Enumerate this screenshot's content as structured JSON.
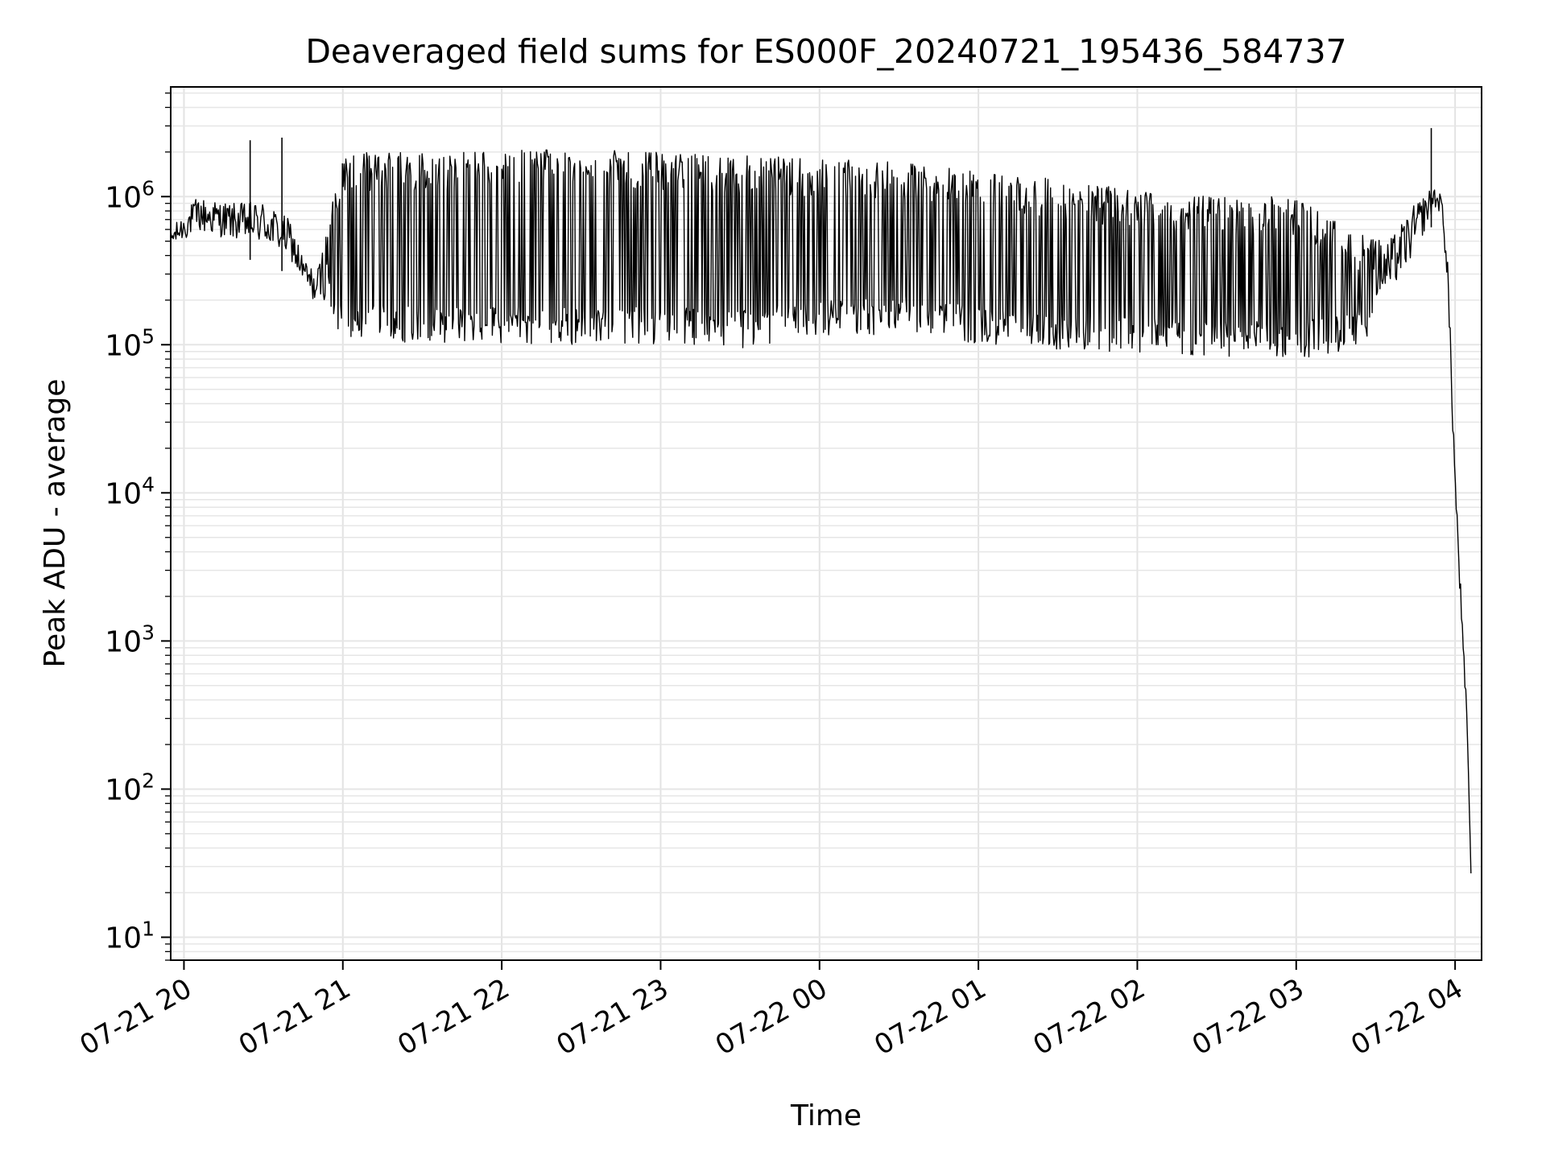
{
  "chart_data": {
    "type": "line",
    "title": "Deaveraged field sums for ES000F_20240721_195436_584737",
    "xlabel": "Time",
    "ylabel": "Peak ADU - average",
    "y_scale": "log",
    "ylim": [
      7,
      5500000
    ],
    "xlim": [
      "2024-07-21 19:55",
      "2024-07-22 04:10"
    ],
    "grid": true,
    "x_ticks": [
      {
        "time": "2024-07-21 20:00",
        "label": "07-21 20"
      },
      {
        "time": "2024-07-21 21:00",
        "label": "07-21 21"
      },
      {
        "time": "2024-07-21 22:00",
        "label": "07-21 22"
      },
      {
        "time": "2024-07-21 23:00",
        "label": "07-21 23"
      },
      {
        "time": "2024-07-22 00:00",
        "label": "07-22 00"
      },
      {
        "time": "2024-07-22 01:00",
        "label": "07-22 01"
      },
      {
        "time": "2024-07-22 02:00",
        "label": "07-22 02"
      },
      {
        "time": "2024-07-22 03:00",
        "label": "07-22 03"
      },
      {
        "time": "2024-07-22 04:00",
        "label": "07-22 04"
      }
    ],
    "y_ticks": [
      {
        "value": 10,
        "base": "10",
        "exp": "1"
      },
      {
        "value": 100,
        "base": "10",
        "exp": "2"
      },
      {
        "value": 1000,
        "base": "10",
        "exp": "3"
      },
      {
        "value": 10000,
        "base": "10",
        "exp": "4"
      },
      {
        "value": 100000,
        "base": "10",
        "exp": "5"
      },
      {
        "value": 1000000,
        "base": "10",
        "exp": "6"
      }
    ],
    "series": [
      {
        "color": "#000000",
        "envelope": [
          {
            "time": "2024-07-21 19:55",
            "low": 400000,
            "high": 600000
          },
          {
            "time": "2024-07-21 20:05",
            "low": 450000,
            "high": 1000000
          },
          {
            "time": "2024-07-21 20:20",
            "low": 400000,
            "high": 900000
          },
          {
            "time": "2024-07-21 20:30",
            "low": 350000,
            "high": 950000
          },
          {
            "time": "2024-07-21 20:40",
            "low": 300000,
            "high": 700000
          },
          {
            "time": "2024-07-21 20:45",
            "low": 200000,
            "high": 400000
          },
          {
            "time": "2024-07-21 20:50",
            "low": 150000,
            "high": 300000
          },
          {
            "time": "2024-07-21 21:00",
            "low": 100000,
            "high": 2000000
          },
          {
            "time": "2024-07-21 21:30",
            "low": 105000,
            "high": 2000000
          },
          {
            "time": "2024-07-21 22:00",
            "low": 100000,
            "high": 2050000
          },
          {
            "time": "2024-07-21 22:30",
            "low": 100000,
            "high": 2100000
          },
          {
            "time": "2024-07-21 23:00",
            "low": 100000,
            "high": 2000000
          },
          {
            "time": "2024-07-21 23:30",
            "low": 95000,
            "high": 1900000
          },
          {
            "time": "2024-07-22 00:00",
            "low": 110000,
            "high": 1800000
          },
          {
            "time": "2024-07-22 00:30",
            "low": 120000,
            "high": 1700000
          },
          {
            "time": "2024-07-22 01:00",
            "low": 100000,
            "high": 1500000
          },
          {
            "time": "2024-07-22 01:30",
            "low": 90000,
            "high": 1300000
          },
          {
            "time": "2024-07-22 02:00",
            "low": 85000,
            "high": 1100000
          },
          {
            "time": "2024-07-22 02:30",
            "low": 80000,
            "high": 1000000
          },
          {
            "time": "2024-07-22 03:00",
            "low": 80000,
            "high": 1000000
          },
          {
            "time": "2024-07-22 03:20",
            "low": 90000,
            "high": 600000
          },
          {
            "time": "2024-07-22 03:35",
            "low": 150000,
            "high": 500000
          },
          {
            "time": "2024-07-22 03:45",
            "low": 300000,
            "high": 900000
          },
          {
            "time": "2024-07-22 03:52",
            "low": 700000,
            "high": 1200000
          },
          {
            "time": "2024-07-22 03:55",
            "low": 700000,
            "high": 1000000
          },
          {
            "time": "2024-07-22 03:57",
            "low": 200000,
            "high": 500000
          },
          {
            "time": "2024-07-22 04:00",
            "low": 8000,
            "high": 15000
          },
          {
            "time": "2024-07-22 04:03",
            "low": 600,
            "high": 1100
          },
          {
            "time": "2024-07-22 04:05",
            "low": 100,
            "high": 220
          },
          {
            "time": "2024-07-22 04:06",
            "low": 7,
            "high": 50
          }
        ],
        "spikes": [
          {
            "time": "2024-07-21 20:25",
            "value": 2400000
          },
          {
            "time": "2024-07-21 20:37",
            "value": 2500000
          },
          {
            "time": "2024-07-22 03:51",
            "value": 2900000
          }
        ]
      }
    ]
  }
}
